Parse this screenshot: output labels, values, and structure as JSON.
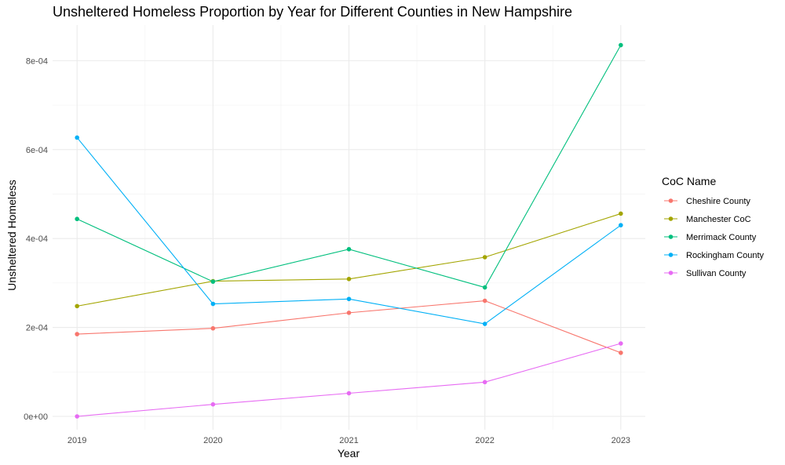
{
  "chart_data": {
    "type": "line",
    "title": "Unsheltered Homeless Proportion by Year for Different Counties in New Hampshire",
    "xlabel": "Year",
    "ylabel": "Unsheltered Homeless",
    "x": [
      2019,
      2020,
      2021,
      2022,
      2023
    ],
    "x_tick_labels": [
      "2019",
      "2020",
      "2021",
      "2022",
      "2023"
    ],
    "y_ticks": [
      0,
      0.0002,
      0.0004,
      0.0006,
      0.0008
    ],
    "y_tick_labels": [
      "0e+00",
      "2e-04",
      "4e-04",
      "6e-04",
      "8e-04"
    ],
    "ylim": [
      -3e-05,
      0.00088
    ],
    "grid": true,
    "legend_title": "CoC Name",
    "legend_position": "right",
    "series": [
      {
        "name": "Cheshire County",
        "color": "#F8766D",
        "values": [
          0.000185,
          0.000198,
          0.000233,
          0.00026,
          0.000143
        ]
      },
      {
        "name": "Manchester CoC",
        "color": "#A3A500",
        "values": [
          0.000248,
          0.000304,
          0.000309,
          0.000358,
          0.000456
        ]
      },
      {
        "name": "Merrimack County",
        "color": "#00BF7D",
        "values": [
          0.000444,
          0.000303,
          0.000376,
          0.00029,
          0.000835
        ]
      },
      {
        "name": "Rockingham County",
        "color": "#00B0F6",
        "values": [
          0.000627,
          0.000253,
          0.000264,
          0.000208,
          0.00043
        ]
      },
      {
        "name": "Sullivan County",
        "color": "#E76BF3",
        "values": [
          0.0,
          2.7e-05,
          5.2e-05,
          7.7e-05,
          0.000164
        ]
      }
    ]
  }
}
